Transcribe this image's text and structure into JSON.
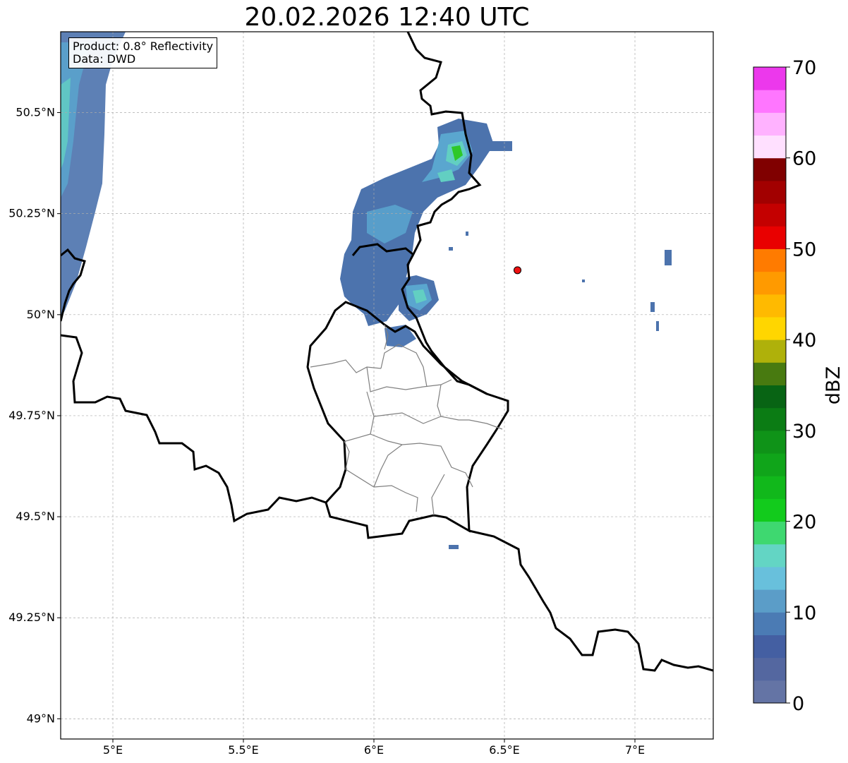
{
  "title": "20.02.2026 12:40 UTC",
  "info": {
    "product": "Product: 0.8° Reflectivity",
    "data": "Data: DWD"
  },
  "map": {
    "lon_range": [
      4.8,
      7.3
    ],
    "lat_range": [
      48.95,
      50.7
    ],
    "lon_ticks": [
      {
        "value": 5.0,
        "label": "5°E"
      },
      {
        "value": 5.5,
        "label": "5.5°E"
      },
      {
        "value": 6.0,
        "label": "6°E"
      },
      {
        "value": 6.5,
        "label": "6.5°E"
      },
      {
        "value": 7.0,
        "label": "7°E"
      }
    ],
    "lat_ticks": [
      {
        "value": 49.0,
        "label": "49°N"
      },
      {
        "value": 49.25,
        "label": "49.25°N"
      },
      {
        "value": 49.5,
        "label": "49.5°N"
      },
      {
        "value": 49.75,
        "label": "49.75°N"
      },
      {
        "value": 50.0,
        "label": "50°N"
      },
      {
        "value": 50.25,
        "label": "50.25°N"
      },
      {
        "value": 50.5,
        "label": "50.5°N"
      }
    ],
    "gridlines": true,
    "radar_site": {
      "lon": 6.55,
      "lat": 50.11,
      "color": "#ee1111"
    }
  },
  "colorbar": {
    "label": "dBZ",
    "min": 0,
    "max": 70,
    "ticks": [
      {
        "value": 0,
        "label": "0"
      },
      {
        "value": 10,
        "label": "10"
      },
      {
        "value": 20,
        "label": "20"
      },
      {
        "value": 30,
        "label": "30"
      },
      {
        "value": 40,
        "label": "40"
      },
      {
        "value": 50,
        "label": "50"
      },
      {
        "value": 60,
        "label": "60"
      },
      {
        "value": 70,
        "label": "70"
      }
    ],
    "colors": [
      "#6474a5",
      "#5467a0",
      "#445fa2",
      "#4b7bb4",
      "#5b9dc8",
      "#68c0dc",
      "#63d5c4",
      "#3ed870",
      "#12cb1c",
      "#11b81b",
      "#10a51a",
      "#0f9318",
      "#0b7c14",
      "#086414",
      "#487a10",
      "#afb10a",
      "#ffd600",
      "#ffba00",
      "#ff9a00",
      "#ff7b00",
      "#e90000",
      "#c40000",
      "#a20000",
      "#800000",
      "#ffe0ff",
      "#ffb2ff",
      "#ff76ff",
      "#ec38ec"
    ]
  }
}
